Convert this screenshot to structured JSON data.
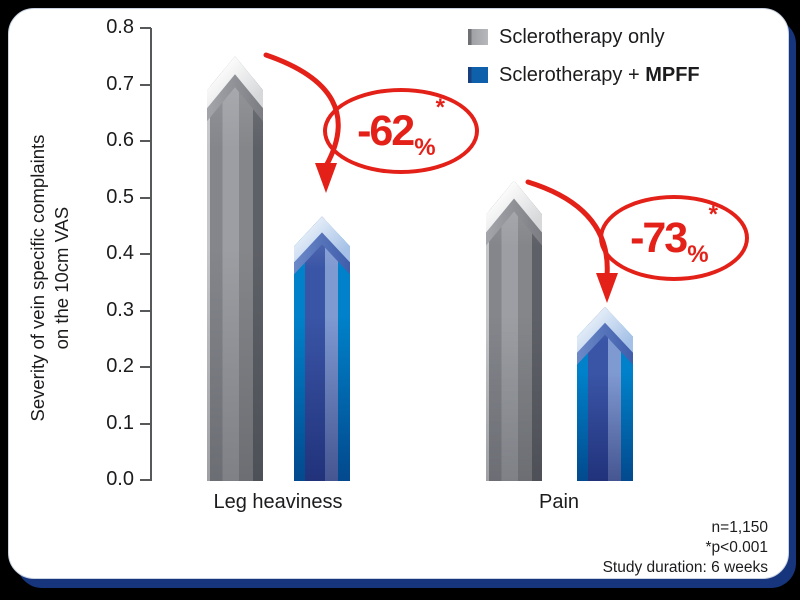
{
  "chart_data": {
    "type": "bar",
    "ylabel_lines": [
      "Severity of vein specific complaints",
      "on the 10cm VAS"
    ],
    "categories": [
      "Leg heaviness",
      "Pain"
    ],
    "series": [
      {
        "name": "Sclerotherapy only",
        "color_key": "gray",
        "values": [
          0.72,
          0.5
        ]
      },
      {
        "name": "Sclerotherapy + MPFF",
        "color_key": "blue",
        "values": [
          0.44,
          0.28
        ]
      }
    ],
    "yticks": [
      "0.8",
      "0.7",
      "0.6",
      "0.5",
      "0.4",
      "0.3",
      "0.2",
      "0.1",
      "0.0"
    ],
    "ylim": [
      0,
      0.8
    ],
    "grid": false,
    "legend_position": "top-right",
    "annotations": [
      {
        "label": "-62",
        "percent_sign": "%",
        "star": "*",
        "applies_to": "Leg heaviness"
      },
      {
        "label": "-73",
        "percent_sign": "%",
        "star": "*",
        "applies_to": "Pain"
      }
    ]
  },
  "legend": {
    "items": [
      {
        "text": "Sclerotherapy only",
        "bold_part": ""
      },
      {
        "text": "Sclerotherapy + ",
        "bold_part": "MPFF"
      }
    ]
  },
  "footnotes": {
    "lines": [
      "n=1,150",
      "*p<0.001",
      "Study duration: 6 weeks"
    ]
  },
  "colors": {
    "accent_red": "#e32119",
    "gray_bar": "#8a8c92",
    "blue_bar": "#0e60aa",
    "border_navy": "#16357c",
    "background": "#000000",
    "panel": "#ffffff"
  }
}
